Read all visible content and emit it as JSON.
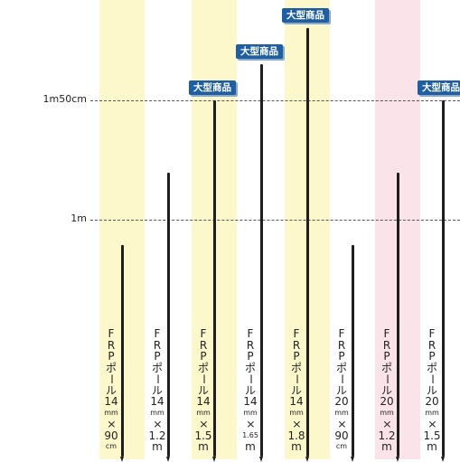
{
  "guides": [
    {
      "label": "1m50cm"
    },
    {
      "label": "1m"
    }
  ],
  "badge_text": "大型商品",
  "items": [
    {
      "label_chars": [
        "F",
        "R",
        "P",
        "ポ",
        "ー",
        "ル",
        "14",
        "mm",
        "×",
        "90",
        "cm"
      ],
      "length_cm": 90,
      "highlight": "yellow",
      "badge": false
    },
    {
      "label_chars": [
        "F",
        "R",
        "P",
        "ポ",
        "ー",
        "ル",
        "14",
        "mm",
        "×",
        "1.2",
        "m"
      ],
      "length_cm": 120,
      "highlight": "none",
      "badge": false
    },
    {
      "label_chars": [
        "F",
        "R",
        "P",
        "ポ",
        "ー",
        "ル",
        "14",
        "mm",
        "×",
        "1.5",
        "m"
      ],
      "length_cm": 150,
      "highlight": "yellow",
      "badge": true
    },
    {
      "label_chars": [
        "F",
        "R",
        "P",
        "ポ",
        "ー",
        "ル",
        "14",
        "mm",
        "×",
        "1.65",
        "m"
      ],
      "length_cm": 165,
      "highlight": "none",
      "badge": true
    },
    {
      "label_chars": [
        "F",
        "R",
        "P",
        "ポ",
        "ー",
        "ル",
        "14",
        "mm",
        "×",
        "1.8",
        "m"
      ],
      "length_cm": 180,
      "highlight": "yellow",
      "badge": true
    },
    {
      "label_chars": [
        "F",
        "R",
        "P",
        "ポ",
        "ー",
        "ル",
        "20",
        "mm",
        "×",
        "90",
        "cm"
      ],
      "length_cm": 90,
      "highlight": "none",
      "badge": false
    },
    {
      "label_chars": [
        "F",
        "R",
        "P",
        "ポ",
        "ー",
        "ル",
        "20",
        "mm",
        "×",
        "1.2",
        "m"
      ],
      "length_cm": 120,
      "highlight": "pink",
      "badge": false
    },
    {
      "label_chars": [
        "F",
        "R",
        "P",
        "ポ",
        "ー",
        "ル",
        "20",
        "mm",
        "×",
        "1.5",
        "m"
      ],
      "length_cm": 150,
      "highlight": "none",
      "badge": true
    }
  ],
  "colors": {
    "pole": "#1e1e1e",
    "badge": "#1f5fa1",
    "highlight_yellow": "#fdf7cc",
    "highlight_pink": "#fbe3ea"
  }
}
